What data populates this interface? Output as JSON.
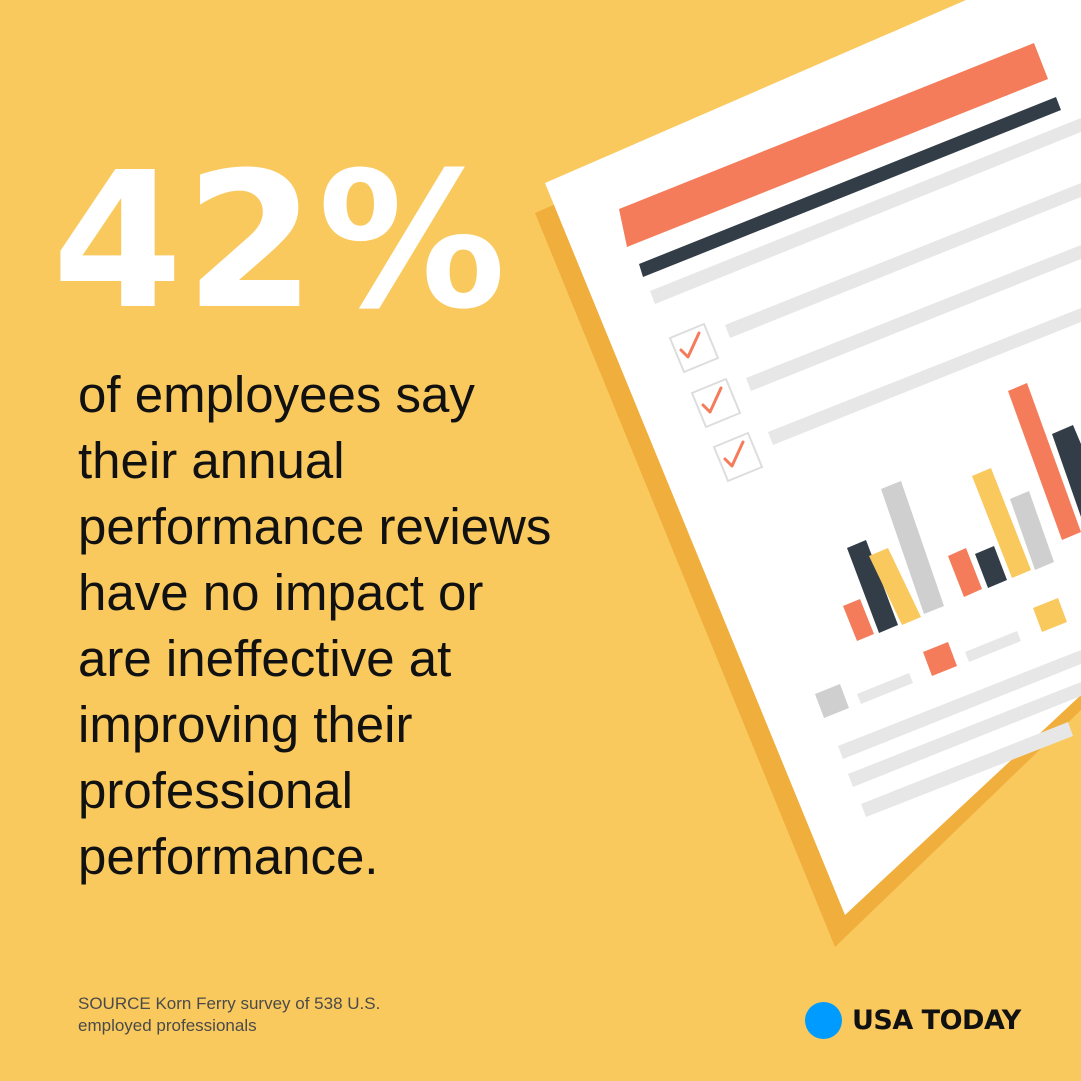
{
  "stat": {
    "value": "42%"
  },
  "headline": {
    "lines": [
      "of employees say",
      "their annual",
      "performance reviews",
      "have no impact or",
      "are ineffective at",
      "improving their",
      "professional",
      "performance."
    ]
  },
  "source": {
    "line1": "SOURCE Korn Ferry survey of 538 U.S.",
    "line2": "employed professionals"
  },
  "brand": {
    "name": "USA TODAY",
    "dot_color": "#009bff"
  },
  "colors": {
    "background": "#f9c95e",
    "paper_shadow": "#f0ae3c",
    "paper": "#ffffff",
    "coral": "#f47c5a",
    "navy": "#333d47",
    "yellow": "#f9c95e",
    "gray": "#cfcfcf",
    "light_gray": "#e7e7e7"
  },
  "illustration": {
    "icons": [
      "report-document-icon",
      "checkbox-icon",
      "bar-chart-icon"
    ],
    "checked_items": 3
  }
}
